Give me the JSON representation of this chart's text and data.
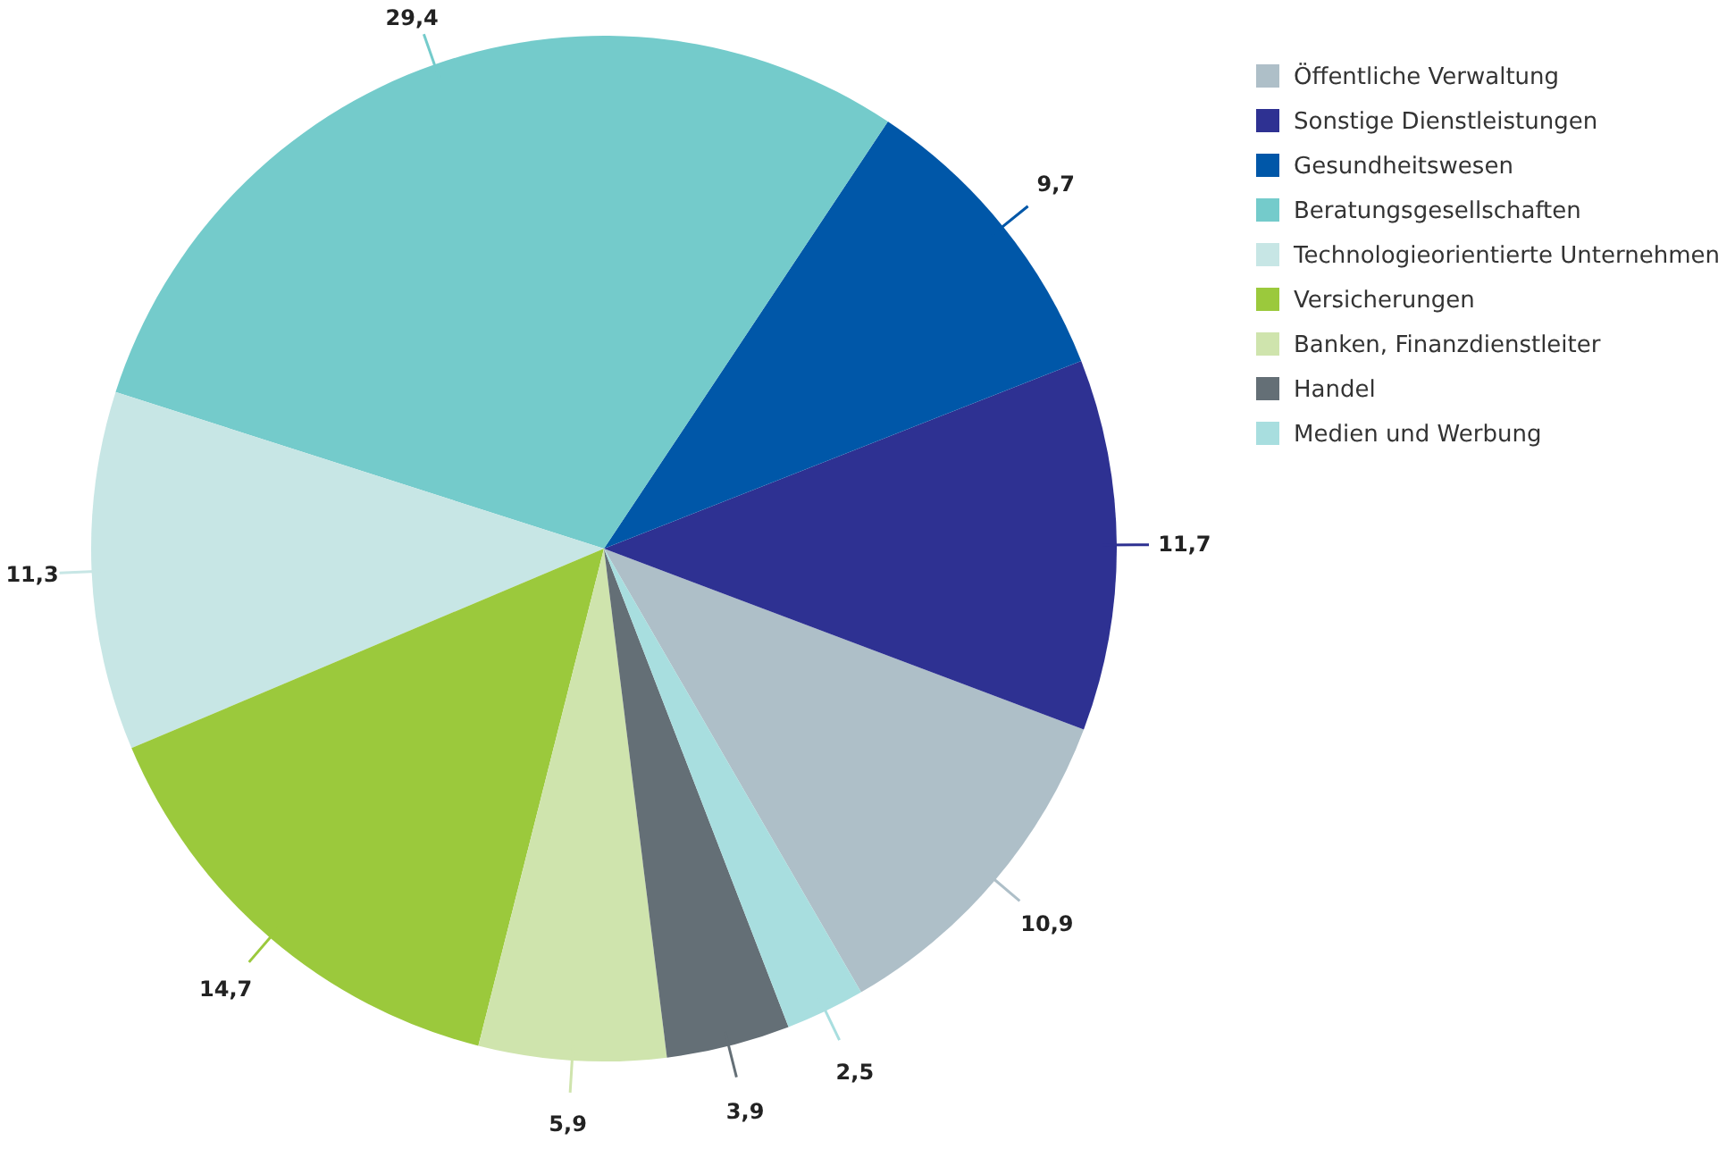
{
  "chart_data": {
    "type": "pie",
    "categories": [
      "Öffentliche Verwaltung",
      "Sonstige Dienstleistungen",
      "Gesundheitswesen",
      "Beratungsgesellschaften",
      "Technologieorientierte Unternehmen",
      "Versicherungen",
      "Banken, Finanzdienstleiter",
      "Handel",
      "Medien und Werbung"
    ],
    "values": [
      10.9,
      11.7,
      9.7,
      29.4,
      11.3,
      14.7,
      5.9,
      3.9,
      2.5
    ],
    "value_labels": [
      "10,9",
      "11,7",
      "9,7",
      "29,4",
      "11,3",
      "14,7",
      "5,9",
      "3,9",
      "2,5"
    ],
    "colors": [
      "#aebfc8",
      "#2e3192",
      "#0057a8",
      "#74cbcb",
      "#c7e6e5",
      "#9bc93c",
      "#cfe4ad",
      "#646f76",
      "#a8dedf"
    ],
    "legend": "top right"
  }
}
